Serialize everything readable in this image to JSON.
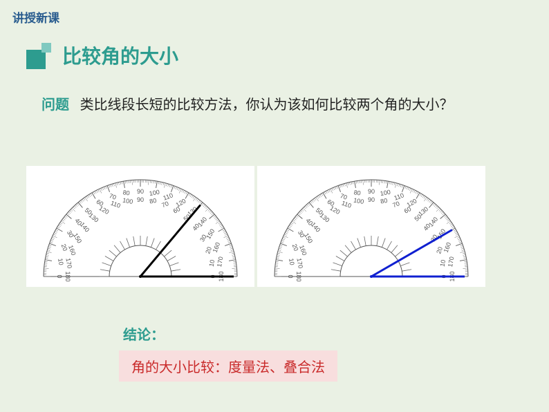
{
  "breadcrumb": "讲授新课",
  "section": {
    "icon_color_main": "#2d9c8f",
    "icon_color_light": "#7fc9c0",
    "title": "比较角的大小"
  },
  "question": {
    "label": "问题",
    "text": "类比线段长短的比较方法，你认为该如何比较两个角的大小？"
  },
  "protractors": [
    {
      "angle_color": "#000000",
      "angle_stroke": 3,
      "ray1_angle_deg": 0,
      "ray2_angle_deg": 50,
      "tick_color": "#666666",
      "background": "#ffffff"
    },
    {
      "angle_color": "#1020d0",
      "angle_stroke": 3,
      "ray1_angle_deg": 0,
      "ray2_angle_deg": 30,
      "tick_color": "#666666",
      "background": "#ffffff"
    }
  ],
  "protractor_labels_outer": [
    "90",
    "80",
    "70",
    "60",
    "50",
    "40",
    "30",
    "20",
    "10",
    "0",
    "100",
    "110",
    "120",
    "130",
    "140",
    "150",
    "160",
    "170",
    "180"
  ],
  "protractor_labels_inner": [
    "90",
    "100",
    "110",
    "120",
    "130",
    "140",
    "150",
    "160",
    "170",
    "180",
    "80",
    "70",
    "60",
    "50",
    "40",
    "30",
    "20",
    "10",
    "0"
  ],
  "conclusion": {
    "label": "结论：",
    "text": "角的大小比较：度量法、叠合法",
    "box_bg": "#f8dede",
    "text_color": "#c92a2a"
  },
  "colors": {
    "page_bg": "#eaf1e4",
    "breadcrumb_color": "#2a5d8f",
    "accent": "#2d9c8f"
  }
}
